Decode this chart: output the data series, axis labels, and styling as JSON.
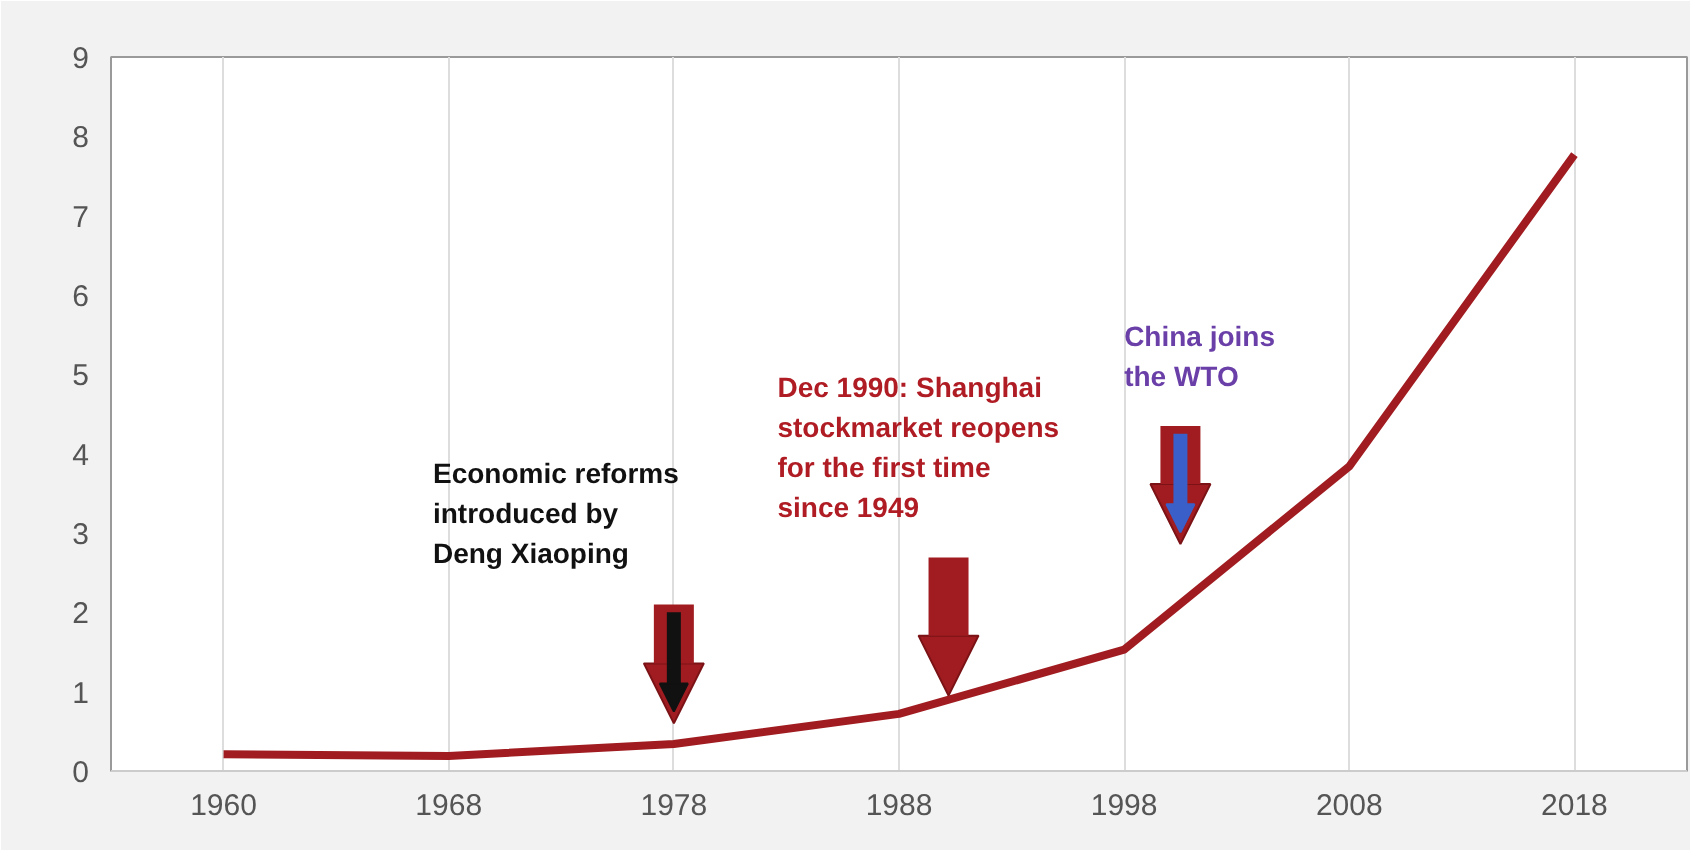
{
  "chart_data": {
    "type": "line",
    "categories": [
      "1960",
      "1968",
      "1978",
      "1988",
      "1998",
      "2008",
      "2018"
    ],
    "series": [
      {
        "color": "#a01c20",
        "values": [
          0.21,
          0.19,
          0.34,
          0.72,
          1.53,
          3.84,
          7.77
        ]
      }
    ],
    "ylim": [
      0,
      9
    ],
    "yticks": [
      0,
      1,
      2,
      3,
      4,
      5,
      6,
      7,
      8,
      9
    ],
    "grid": "x",
    "marker": "none",
    "line_style": "solid",
    "annotations": [
      "Economic reforms\nintroduced by\nDeng Xiaoping",
      "Dec 1990: Shanghai\nstockmarket reopens\nfor the first time\nsince 1949",
      "China joins\nthe WTO"
    ]
  }
}
